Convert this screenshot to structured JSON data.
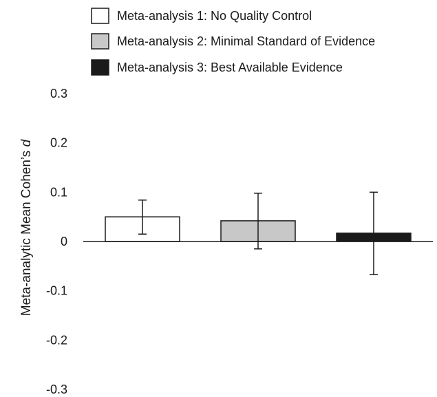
{
  "chart_data": {
    "type": "bar",
    "categories": [
      "Meta-analysis 1",
      "Meta-analysis 2",
      "Meta-analysis 3"
    ],
    "series": [
      {
        "name": "Meta-analysis 1: No Quality Control",
        "values": [
          0.05,
          null,
          null
        ],
        "error_low": [
          0.015,
          null,
          null
        ],
        "error_high": [
          0.084,
          null,
          null
        ],
        "color": "#ffffff"
      },
      {
        "name": "Meta-analysis 2: Minimal Standard of Evidence",
        "values": [
          null,
          0.042,
          null
        ],
        "error_low": [
          null,
          -0.015,
          null
        ],
        "error_high": [
          null,
          0.098,
          null
        ],
        "color": "#c8c8c8"
      },
      {
        "name": "Meta-analysis 3: Best Available Evidence",
        "values": [
          null,
          null,
          0.017
        ],
        "error_low": [
          null,
          null,
          -0.067
        ],
        "error_high": [
          null,
          null,
          0.1
        ],
        "color": "#1a1a1a"
      }
    ],
    "ylabel_main": "Meta-analytic Mean Cohen’s ",
    "ylabel_italic": "d",
    "ylim": [
      -0.3,
      0.3
    ],
    "yticks": [
      0.3,
      0.2,
      0.1,
      0,
      -0.1,
      -0.2,
      -0.3
    ],
    "ytick_labels": [
      "0.3",
      "0.2",
      "0.1",
      "0",
      "-0.1",
      "-0.2",
      "-0.3"
    ],
    "grid": false,
    "legend_position": "top"
  }
}
